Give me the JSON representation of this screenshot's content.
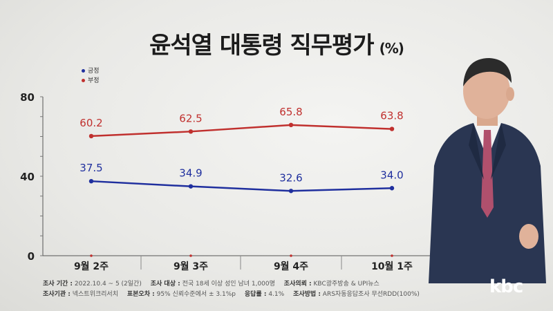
{
  "title": "윤석열 대통령 직무평가",
  "title_unit": "(%)",
  "logo": "kbc",
  "footer": {
    "line1": [
      {
        "label": "조사 기간 :",
        "value": "2022.10.4 ~ 5 (2일간)"
      },
      {
        "label": "조사 대상 :",
        "value": "전국 18세 이상 성인 남녀 1,000명"
      },
      {
        "label": "조사의뢰 :",
        "value": "KBC광주방송 & UPI뉴스"
      }
    ],
    "line2": [
      {
        "label": "조사기관 :",
        "value": "넥스트위크리서치"
      },
      {
        "label": "표본오차 :",
        "value": "95% 신뢰수준에서 ± 3.1%p"
      },
      {
        "label": "응답률 :",
        "value": "4.1%"
      },
      {
        "label": "조사방법 :",
        "value": "ARS자동응답조사 무선RDD(100%)"
      }
    ]
  },
  "chart_data": {
    "type": "line",
    "categories": [
      "9월 2주",
      "9월 3주",
      "9월 4주",
      "10월 1주"
    ],
    "series": [
      {
        "name": "긍정",
        "color": "#1f2f9e",
        "values": [
          37.5,
          34.9,
          32.6,
          34.0
        ]
      },
      {
        "name": "부정",
        "color": "#c0302e",
        "values": [
          60.2,
          62.5,
          65.8,
          63.8
        ]
      }
    ],
    "ylim": [
      0,
      80
    ],
    "yticks": [
      "0",
      "40",
      "80"
    ],
    "legend": "top-left",
    "grid": false
  }
}
